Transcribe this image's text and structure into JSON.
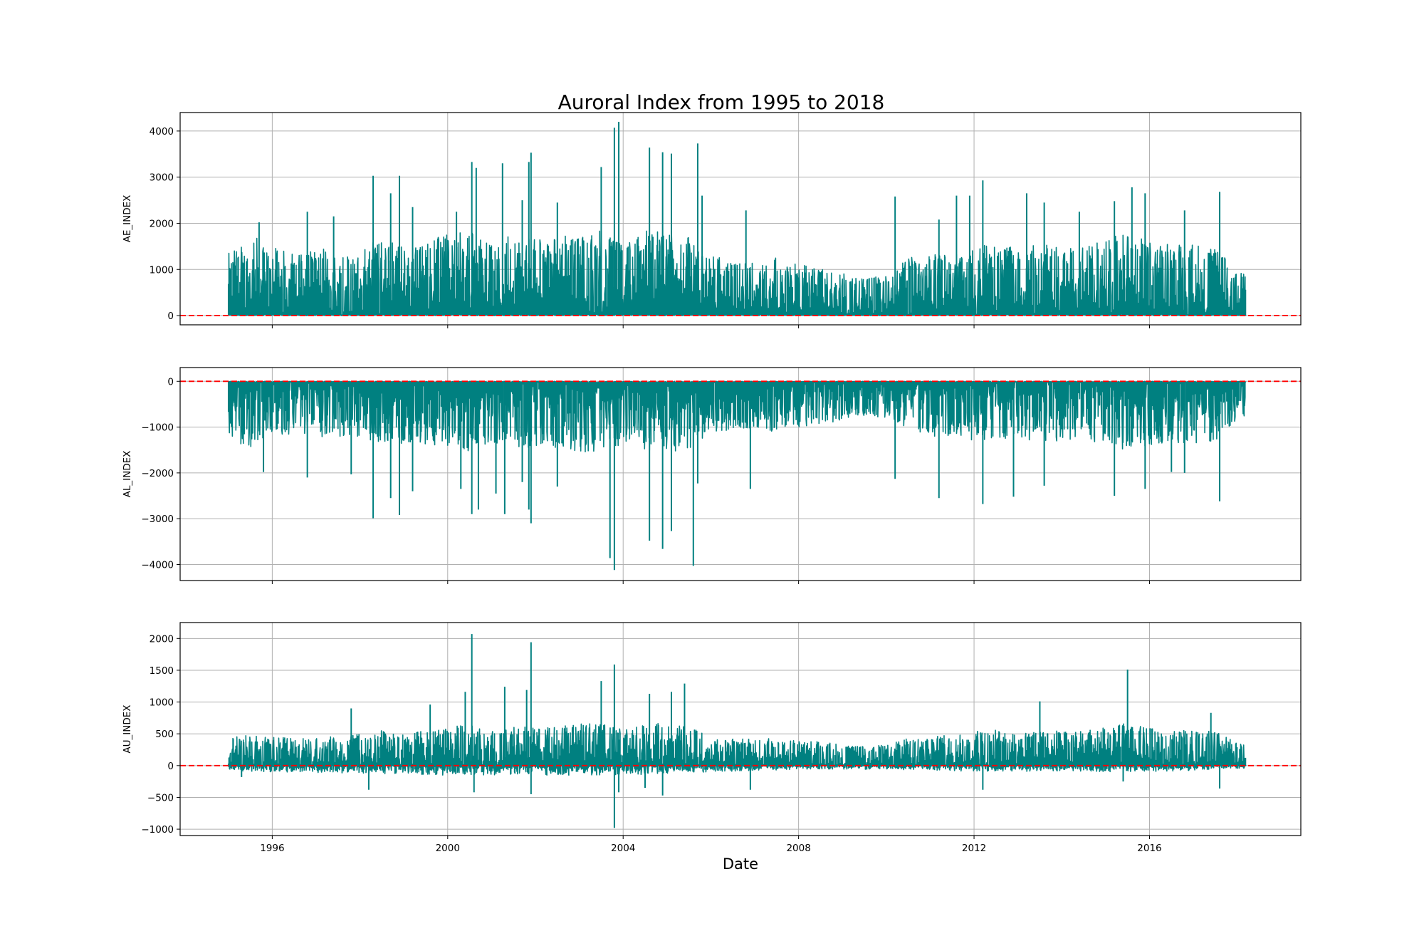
{
  "chart_data": {
    "type": "line",
    "title": "Auroral Index from 1995 to 2018",
    "xlabel": "Date",
    "x_tick_labels": [
      "1996",
      "2000",
      "2004",
      "2008",
      "2012",
      "2016"
    ],
    "x_ticks": [
      1996,
      2000,
      2004,
      2008,
      2012,
      2016
    ],
    "xlim": [
      1993.9,
      2019.45
    ],
    "data_range": [
      1995.0,
      2018.2
    ],
    "grid": true,
    "line_color": "#008080",
    "reference_line": {
      "y": 0,
      "color": "#ff0000",
      "style": "dashed"
    },
    "panels": [
      {
        "ylabel": "AE_INDEX",
        "ylim": [
          -200,
          4400
        ],
        "yticks": [
          0,
          1000,
          2000,
          3000,
          4000
        ],
        "ytick_labels": [
          "0",
          "1000",
          "2000",
          "3000",
          "4000"
        ],
        "baseline": 0,
        "envelope": [
          [
            1995.0,
            1350
          ],
          [
            1995.3,
            1600
          ],
          [
            1995.6,
            1750
          ],
          [
            1996.0,
            1500
          ],
          [
            1996.5,
            1350
          ],
          [
            1997.0,
            1500
          ],
          [
            1997.5,
            1400
          ],
          [
            1998.0,
            1500
          ],
          [
            1998.5,
            1650
          ],
          [
            1999.0,
            1550
          ],
          [
            1999.5,
            1650
          ],
          [
            2000.0,
            1750
          ],
          [
            2000.5,
            1850
          ],
          [
            2001.0,
            1600
          ],
          [
            2001.5,
            1750
          ],
          [
            2002.0,
            1700
          ],
          [
            2002.5,
            1700
          ],
          [
            2003.0,
            1800
          ],
          [
            2003.5,
            1850
          ],
          [
            2004.0,
            1550
          ],
          [
            2004.5,
            1850
          ],
          [
            2005.0,
            1850
          ],
          [
            2005.5,
            1750
          ],
          [
            2006.0,
            1300
          ],
          [
            2006.5,
            1200
          ],
          [
            2007.0,
            1250
          ],
          [
            2007.5,
            1250
          ],
          [
            2008.0,
            1150
          ],
          [
            2008.5,
            1050
          ],
          [
            2009.0,
            950
          ],
          [
            2009.5,
            850
          ],
          [
            2010.0,
            900
          ],
          [
            2010.5,
            1250
          ],
          [
            2011.0,
            1350
          ],
          [
            2011.5,
            1350
          ],
          [
            2012.0,
            1500
          ],
          [
            2012.5,
            1550
          ],
          [
            2013.0,
            1450
          ],
          [
            2013.5,
            1550
          ],
          [
            2014.0,
            1500
          ],
          [
            2014.5,
            1500
          ],
          [
            2015.0,
            1700
          ],
          [
            2015.5,
            1850
          ],
          [
            2016.0,
            1650
          ],
          [
            2016.5,
            1550
          ],
          [
            2017.0,
            1550
          ],
          [
            2017.5,
            1500
          ],
          [
            2018.0,
            950
          ],
          [
            2018.2,
            900
          ]
        ],
        "spikes": [
          [
            1995.7,
            2020
          ],
          [
            1996.8,
            2250
          ],
          [
            1997.4,
            2150
          ],
          [
            1998.3,
            3030
          ],
          [
            1998.7,
            2650
          ],
          [
            1998.9,
            3030
          ],
          [
            1999.2,
            2350
          ],
          [
            2000.2,
            2250
          ],
          [
            2000.55,
            3330
          ],
          [
            2000.65,
            3200
          ],
          [
            2001.25,
            3300
          ],
          [
            2001.7,
            2500
          ],
          [
            2001.85,
            3330
          ],
          [
            2001.9,
            3530
          ],
          [
            2002.5,
            2450
          ],
          [
            2003.5,
            3220
          ],
          [
            2003.8,
            4070
          ],
          [
            2003.9,
            4200
          ],
          [
            2004.6,
            3640
          ],
          [
            2004.9,
            3540
          ],
          [
            2005.1,
            3510
          ],
          [
            2005.7,
            3730
          ],
          [
            2005.8,
            2600
          ],
          [
            2006.8,
            2280
          ],
          [
            2010.2,
            2580
          ],
          [
            2011.2,
            2080
          ],
          [
            2011.6,
            2600
          ],
          [
            2011.9,
            2600
          ],
          [
            2012.2,
            2930
          ],
          [
            2013.2,
            2650
          ],
          [
            2013.6,
            2450
          ],
          [
            2014.4,
            2250
          ],
          [
            2015.2,
            2480
          ],
          [
            2015.6,
            2780
          ],
          [
            2015.9,
            2650
          ],
          [
            2016.8,
            2280
          ],
          [
            2017.6,
            2680
          ]
        ]
      },
      {
        "ylabel": "AL_INDEX",
        "ylim": [
          -4350,
          300
        ],
        "yticks": [
          0,
          -1000,
          -2000,
          -3000,
          -4000
        ],
        "ytick_labels": [
          "0",
          "−1000",
          "−2000",
          "−3000",
          "−4000"
        ],
        "baseline": 0,
        "envelope": [
          [
            1995.0,
            -1200
          ],
          [
            1995.3,
            -1400
          ],
          [
            1995.6,
            -1450
          ],
          [
            1996.0,
            -1250
          ],
          [
            1996.5,
            -1150
          ],
          [
            1997.0,
            -1250
          ],
          [
            1997.5,
            -1200
          ],
          [
            1998.0,
            -1300
          ],
          [
            1998.5,
            -1400
          ],
          [
            1999.0,
            -1350
          ],
          [
            1999.5,
            -1400
          ],
          [
            2000.0,
            -1450
          ],
          [
            2000.5,
            -1550
          ],
          [
            2001.0,
            -1350
          ],
          [
            2001.5,
            -1500
          ],
          [
            2002.0,
            -1450
          ],
          [
            2002.5,
            -1450
          ],
          [
            2003.0,
            -1550
          ],
          [
            2003.5,
            -1600
          ],
          [
            2004.0,
            -1350
          ],
          [
            2004.5,
            -1550
          ],
          [
            2005.0,
            -1550
          ],
          [
            2005.5,
            -1500
          ],
          [
            2006.0,
            -1150
          ],
          [
            2006.5,
            -1050
          ],
          [
            2007.0,
            -1100
          ],
          [
            2007.5,
            -1100
          ],
          [
            2008.0,
            -1000
          ],
          [
            2008.5,
            -950
          ],
          [
            2009.0,
            -850
          ],
          [
            2009.5,
            -750
          ],
          [
            2010.0,
            -800
          ],
          [
            2010.5,
            -1100
          ],
          [
            2011.0,
            -1200
          ],
          [
            2011.5,
            -1200
          ],
          [
            2012.0,
            -1300
          ],
          [
            2012.5,
            -1350
          ],
          [
            2013.0,
            -1250
          ],
          [
            2013.5,
            -1350
          ],
          [
            2014.0,
            -1300
          ],
          [
            2014.5,
            -1300
          ],
          [
            2015.0,
            -1450
          ],
          [
            2015.5,
            -1550
          ],
          [
            2016.0,
            -1400
          ],
          [
            2016.5,
            -1350
          ],
          [
            2017.0,
            -1350
          ],
          [
            2017.5,
            -1300
          ],
          [
            2018.0,
            -850
          ],
          [
            2018.2,
            -800
          ]
        ],
        "spikes": [
          [
            1995.8,
            -1980
          ],
          [
            1996.8,
            -2100
          ],
          [
            1997.8,
            -2030
          ],
          [
            1998.3,
            -2990
          ],
          [
            1998.7,
            -2550
          ],
          [
            1998.9,
            -2920
          ],
          [
            1999.2,
            -2400
          ],
          [
            2000.3,
            -2350
          ],
          [
            2000.55,
            -2900
          ],
          [
            2000.7,
            -2800
          ],
          [
            2001.1,
            -2450
          ],
          [
            2001.3,
            -2900
          ],
          [
            2001.7,
            -2200
          ],
          [
            2001.85,
            -2800
          ],
          [
            2001.9,
            -3100
          ],
          [
            2002.5,
            -2300
          ],
          [
            2003.7,
            -3860
          ],
          [
            2003.8,
            -4120
          ],
          [
            2004.6,
            -3480
          ],
          [
            2004.9,
            -3660
          ],
          [
            2005.1,
            -3270
          ],
          [
            2005.6,
            -4030
          ],
          [
            2005.7,
            -2230
          ],
          [
            2006.9,
            -2350
          ],
          [
            2010.2,
            -2130
          ],
          [
            2011.2,
            -2550
          ],
          [
            2012.2,
            -2680
          ],
          [
            2012.9,
            -2520
          ],
          [
            2013.6,
            -2280
          ],
          [
            2015.2,
            -2500
          ],
          [
            2015.9,
            -2350
          ],
          [
            2016.5,
            -1980
          ],
          [
            2016.8,
            -2000
          ],
          [
            2017.6,
            -2620
          ]
        ]
      },
      {
        "ylabel": "AU_INDEX",
        "ylim": [
          -1100,
          2250
        ],
        "yticks": [
          2000,
          1500,
          1000,
          500,
          0,
          -500,
          -1000
        ],
        "ytick_labels": [
          "2000",
          "1500",
          "1000",
          "500",
          "0",
          "−500",
          "−1000"
        ],
        "baseline": 0,
        "envelope": [
          [
            1995.0,
            450
          ],
          [
            1995.5,
            500
          ],
          [
            1996.0,
            450
          ],
          [
            1996.5,
            430
          ],
          [
            1997.0,
            480
          ],
          [
            1997.5,
            450
          ],
          [
            1998.0,
            500
          ],
          [
            1998.5,
            550
          ],
          [
            1999.0,
            520
          ],
          [
            1999.5,
            560
          ],
          [
            2000.0,
            600
          ],
          [
            2000.5,
            650
          ],
          [
            2001.0,
            560
          ],
          [
            2001.5,
            620
          ],
          [
            2002.0,
            600
          ],
          [
            2002.5,
            620
          ],
          [
            2003.0,
            650
          ],
          [
            2003.5,
            700
          ],
          [
            2004.0,
            560
          ],
          [
            2004.5,
            680
          ],
          [
            2005.0,
            650
          ],
          [
            2005.5,
            620
          ],
          [
            2006.0,
            450
          ],
          [
            2006.5,
            420
          ],
          [
            2007.0,
            430
          ],
          [
            2007.5,
            420
          ],
          [
            2008.0,
            400
          ],
          [
            2008.5,
            380
          ],
          [
            2009.0,
            330
          ],
          [
            2009.5,
            300
          ],
          [
            2010.0,
            330
          ],
          [
            2010.5,
            430
          ],
          [
            2011.0,
            480
          ],
          [
            2011.5,
            480
          ],
          [
            2012.0,
            550
          ],
          [
            2012.5,
            560
          ],
          [
            2013.0,
            520
          ],
          [
            2013.5,
            560
          ],
          [
            2014.0,
            540
          ],
          [
            2014.5,
            550
          ],
          [
            2015.0,
            620
          ],
          [
            2015.5,
            680
          ],
          [
            2016.0,
            600
          ],
          [
            2016.5,
            560
          ],
          [
            2017.0,
            560
          ],
          [
            2017.5,
            560
          ],
          [
            2018.0,
            350
          ],
          [
            2018.2,
            330
          ]
        ],
        "neg_envelope": [
          [
            1995.0,
            -80
          ],
          [
            1996.0,
            -100
          ],
          [
            1998.0,
            -120
          ],
          [
            2000.0,
            -150
          ],
          [
            2002.0,
            -150
          ],
          [
            2004.0,
            -150
          ],
          [
            2006.0,
            -100
          ],
          [
            2008.0,
            -60
          ],
          [
            2010.0,
            -60
          ],
          [
            2012.0,
            -90
          ],
          [
            2014.0,
            -90
          ],
          [
            2016.0,
            -100
          ],
          [
            2018.2,
            -40
          ]
        ],
        "spikes": [
          [
            1997.8,
            900
          ],
          [
            1999.6,
            960
          ],
          [
            2000.4,
            1160
          ],
          [
            2000.55,
            2070
          ],
          [
            2001.3,
            1240
          ],
          [
            2001.8,
            1190
          ],
          [
            2001.9,
            1940
          ],
          [
            2003.5,
            1330
          ],
          [
            2003.8,
            1590
          ],
          [
            2004.6,
            1130
          ],
          [
            2005.1,
            1160
          ],
          [
            2005.4,
            1290
          ],
          [
            2013.5,
            1010
          ],
          [
            2015.5,
            1510
          ],
          [
            2017.4,
            830
          ]
        ],
        "neg_spikes": [
          [
            1995.3,
            -180
          ],
          [
            1998.2,
            -380
          ],
          [
            2000.6,
            -420
          ],
          [
            2001.9,
            -450
          ],
          [
            2003.8,
            -980
          ],
          [
            2003.9,
            -420
          ],
          [
            2004.5,
            -350
          ],
          [
            2004.9,
            -470
          ],
          [
            2006.9,
            -380
          ],
          [
            2012.2,
            -380
          ],
          [
            2015.4,
            -250
          ],
          [
            2017.6,
            -360
          ]
        ]
      }
    ]
  }
}
